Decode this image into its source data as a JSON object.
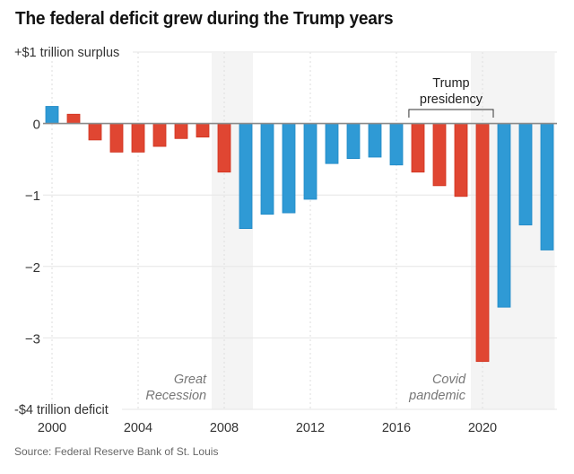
{
  "chart_data": {
    "type": "bar",
    "title": "The federal deficit grew during the Trump years",
    "xlabel": "",
    "ylabel": "",
    "ylim": [
      -4,
      1
    ],
    "yticks": [
      {
        "value": 1,
        "label": "+$1 trillion surplus"
      },
      {
        "value": 0,
        "label": "0"
      },
      {
        "value": -1,
        "label": "−1"
      },
      {
        "value": -2,
        "label": "−2"
      },
      {
        "value": -3,
        "label": "−3"
      },
      {
        "value": -4,
        "label": "-$4 trillion deficit"
      }
    ],
    "xticks": [
      2000,
      2004,
      2008,
      2012,
      2016,
      2020
    ],
    "xlim": [
      2000,
      2023
    ],
    "grid": true,
    "units": "trillions of dollars",
    "categories": [
      2000,
      2001,
      2002,
      2003,
      2004,
      2005,
      2006,
      2007,
      2008,
      2009,
      2010,
      2011,
      2012,
      2013,
      2014,
      2015,
      2016,
      2017,
      2018,
      2019,
      2020,
      2021,
      2022,
      2023
    ],
    "values": [
      0.24,
      0.13,
      -0.23,
      -0.4,
      -0.4,
      -0.32,
      -0.21,
      -0.19,
      -0.68,
      -1.47,
      -1.27,
      -1.25,
      -1.06,
      -0.56,
      -0.49,
      -0.47,
      -0.58,
      -0.68,
      -0.87,
      -1.02,
      -3.33,
      -2.57,
      -1.42,
      -1.77
    ],
    "party": [
      "D",
      "R",
      "R",
      "R",
      "R",
      "R",
      "R",
      "R",
      "R",
      "D",
      "D",
      "D",
      "D",
      "D",
      "D",
      "D",
      "D",
      "R",
      "R",
      "R",
      "R",
      "D",
      "D",
      "D"
    ],
    "colors": {
      "R": "#e04632",
      "D": "#2f9ad5",
      "R_edge": "#d0321e",
      "D_edge": "#2089c6",
      "band": "#f4f4f4",
      "grid": "#e6e6e6",
      "zero": "#8a8a8a"
    },
    "shaded_periods": [
      {
        "name": "Great Recession",
        "label_lines": [
          "Great",
          "Recession"
        ],
        "start": 2007.42,
        "end": 2009.33
      },
      {
        "name": "Covid pandemic",
        "label_lines": [
          "Covid",
          "pandemic"
        ],
        "start": 2019.46,
        "end": 2023.35
      }
    ],
    "annotations": [
      {
        "type": "bracket",
        "label_lines": [
          "Trump",
          "presidency"
        ],
        "start": 2016.58,
        "end": 2020.5
      }
    ],
    "source": "Source: Federal Reserve Bank of St. Louis"
  }
}
